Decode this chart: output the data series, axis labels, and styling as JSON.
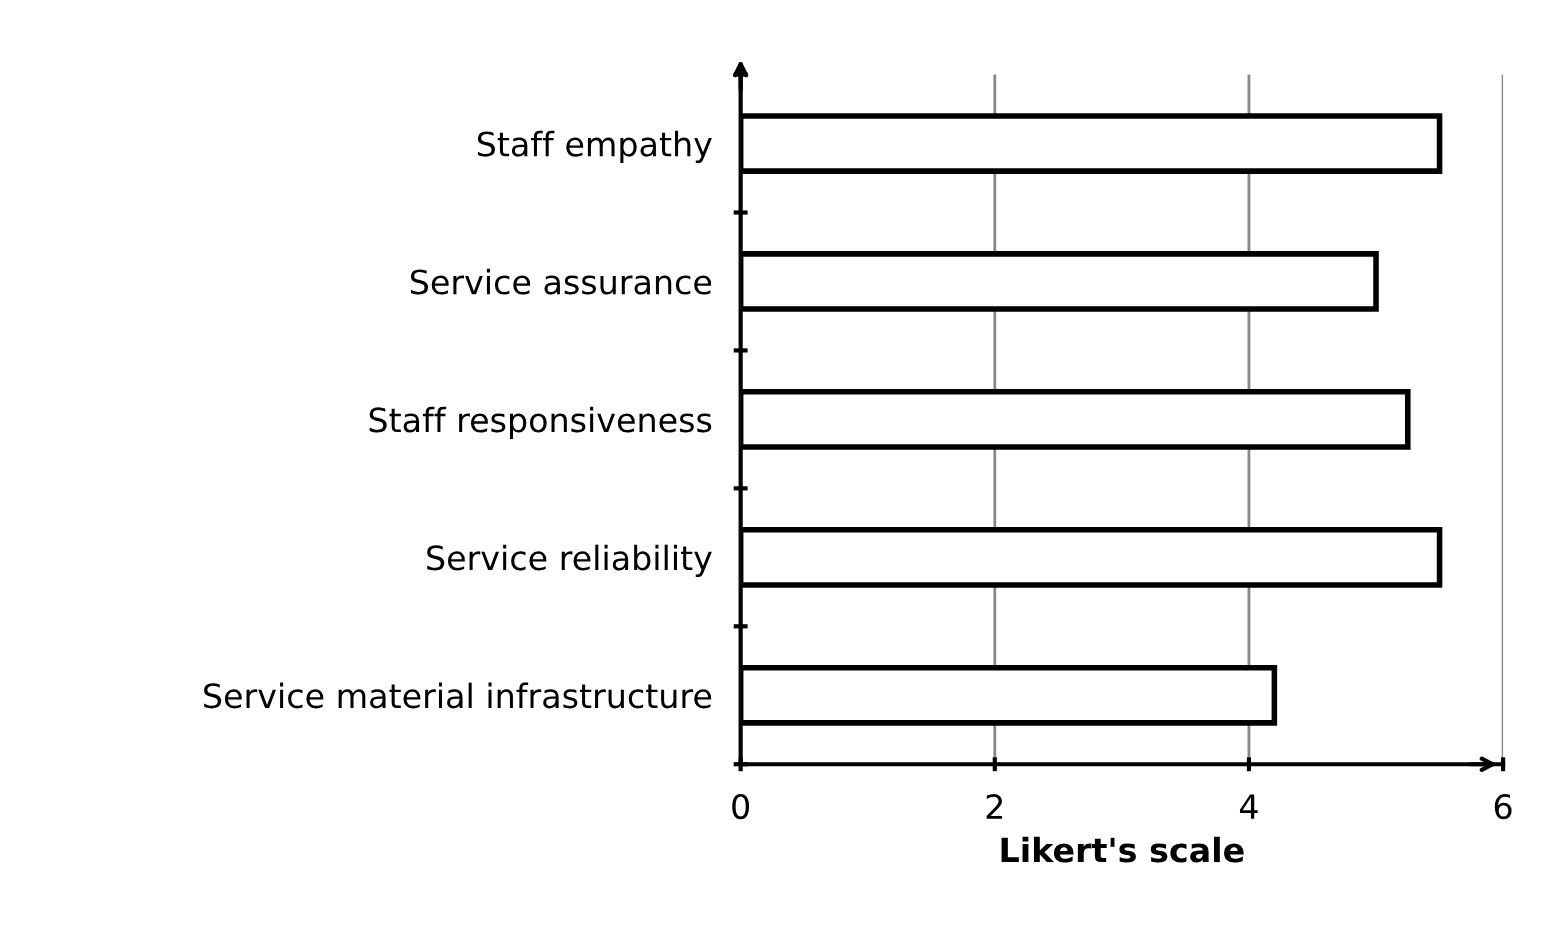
{
  "chart_data": {
    "type": "bar",
    "orientation": "horizontal",
    "xlabel": "Likert's scale",
    "categories": [
      "Staff empathy",
      "Service assurance",
      "Staff responsiveness",
      "Service reliability",
      "Service material infrastructure"
    ],
    "values": [
      5.5,
      5.0,
      5.25,
      5.5,
      4.2
    ],
    "color": "#ffffff",
    "xlim": [
      0,
      6
    ],
    "xticks": [
      0,
      2,
      4,
      6
    ],
    "grid": "x"
  }
}
